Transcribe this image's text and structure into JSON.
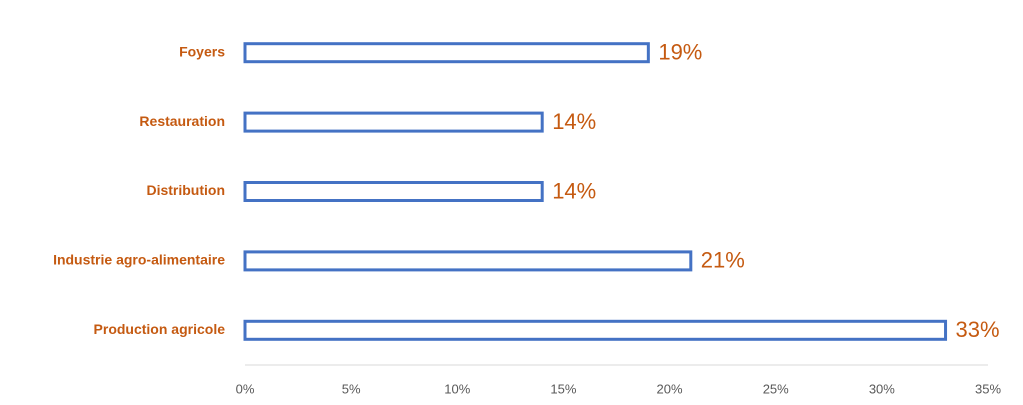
{
  "chart_data": {
    "type": "hbar",
    "categories": [
      "Foyers",
      "Restauration",
      "Distribution",
      "Industrie agro-alimentaire",
      "Production agricole"
    ],
    "values": [
      19,
      14,
      14,
      21,
      33
    ],
    "value_labels": [
      "19%",
      "14%",
      "14%",
      "21%",
      "33%"
    ],
    "color": "#4472c4",
    "xlim": [
      0,
      35
    ],
    "xticks": [
      {
        "value": 0,
        "label": "0%"
      },
      {
        "value": 5,
        "label": "5%"
      },
      {
        "value": 10,
        "label": "10%"
      },
      {
        "value": 15,
        "label": "15%"
      },
      {
        "value": 20,
        "label": "20%"
      },
      {
        "value": 25,
        "label": "25%"
      },
      {
        "value": 30,
        "label": "30%"
      },
      {
        "value": 35,
        "label": "35%"
      }
    ]
  }
}
